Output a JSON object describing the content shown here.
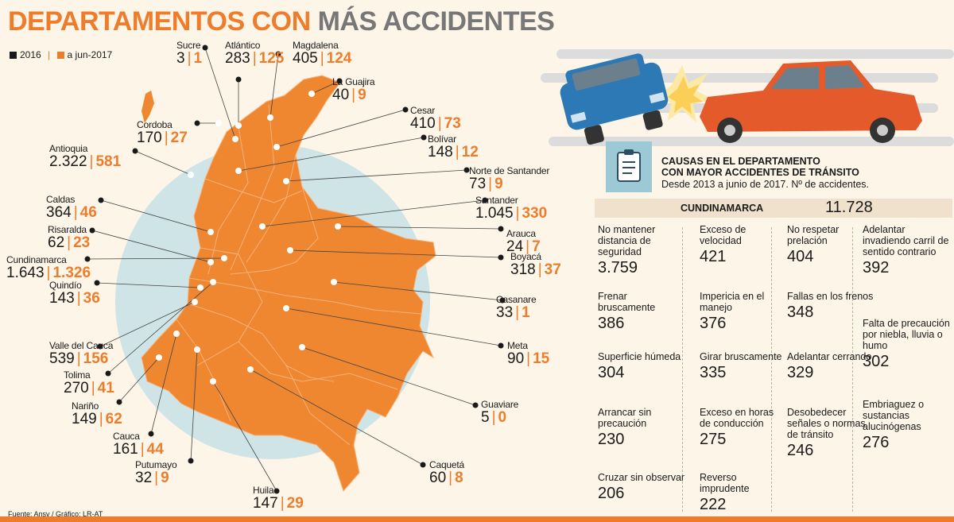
{
  "title": {
    "part1": "DEPARTAMENTOS CON",
    "part2": "MÁS ACCIDENTES"
  },
  "legend": {
    "y2016": "2016",
    "y2017": "a jun-2017",
    "sep": "|"
  },
  "colors": {
    "accent": "#ee7d2b",
    "map_fill": "#ef8630",
    "circle": "#cfe4e6",
    "dark": "#1a1a1a",
    "car_blue": "#2d79b6",
    "car_red": "#e55a2b"
  },
  "departments": [
    {
      "name": "Sucre",
      "v2016": "3",
      "v2017": "1"
    },
    {
      "name": "Atlántico",
      "v2016": "283",
      "v2017": "125"
    },
    {
      "name": "Magdalena",
      "v2016": "405",
      "v2017": "124"
    },
    {
      "name": "La Guajira",
      "v2016": "40",
      "v2017": "9"
    },
    {
      "name": "Cesar",
      "v2016": "410",
      "v2017": "73"
    },
    {
      "name": "Bolívar",
      "v2016": "148",
      "v2017": "12"
    },
    {
      "name": "Norte de Santander",
      "v2016": "73",
      "v2017": "9"
    },
    {
      "name": "Santander",
      "v2016": "1.045",
      "v2017": "330"
    },
    {
      "name": "Arauca",
      "v2016": "24",
      "v2017": "7"
    },
    {
      "name": "Boyacá",
      "v2016": "318",
      "v2017": "37"
    },
    {
      "name": "Casanare",
      "v2016": "33",
      "v2017": "1"
    },
    {
      "name": "Meta",
      "v2016": "90",
      "v2017": "15"
    },
    {
      "name": "Guaviare",
      "v2016": "5",
      "v2017": "0"
    },
    {
      "name": "Caquetá",
      "v2016": "60",
      "v2017": "8"
    },
    {
      "name": "Huila",
      "v2016": "147",
      "v2017": "29"
    },
    {
      "name": "Putumayo",
      "v2016": "32",
      "v2017": "9"
    },
    {
      "name": "Cauca",
      "v2016": "161",
      "v2017": "44"
    },
    {
      "name": "Nariño",
      "v2016": "149",
      "v2017": "62"
    },
    {
      "name": "Tolima",
      "v2016": "270",
      "v2017": "41"
    },
    {
      "name": "Valle del Cauca",
      "v2016": "539",
      "v2017": "156"
    },
    {
      "name": "Quindío",
      "v2016": "143",
      "v2017": "36"
    },
    {
      "name": "Cundinamarca",
      "v2016": "1.643",
      "v2017": "1.326"
    },
    {
      "name": "Risaralda",
      "v2016": "62",
      "v2017": "23"
    },
    {
      "name": "Caldas",
      "v2016": "364",
      "v2017": "46"
    },
    {
      "name": "Antioquia",
      "v2016": "2.322",
      "v2017": "581"
    },
    {
      "name": "Cordoba",
      "v2016": "170",
      "v2017": "27"
    }
  ],
  "causes_panel": {
    "title_line1": "CAUSAS EN EL DEPARTAMENTO",
    "title_line2": "CON MAYOR ACCIDENTES DE TRÁNSITO",
    "subtitle": "Desde 2013 a junio de 2017. Nº de accidentes.",
    "department": "CUNDINAMARCA",
    "total": "11.728",
    "icon": "clipboard-icon",
    "illustration": "car-collision-illustration",
    "causes": [
      {
        "label": "No mantener distancia de seguridad",
        "value": "3.759"
      },
      {
        "label": "Frenar bruscamente",
        "value": "386"
      },
      {
        "label": "Superficie húmeda",
        "value": "304"
      },
      {
        "label": "Arrancar sin precaución",
        "value": "230"
      },
      {
        "label": "Cruzar sin observar",
        "value": "206"
      },
      {
        "label": "Exceso de velocidad",
        "value": "421"
      },
      {
        "label": "Impericia en el manejo",
        "value": "376"
      },
      {
        "label": "Girar bruscamente",
        "value": "335"
      },
      {
        "label": "Exceso en horas de conducción",
        "value": "275"
      },
      {
        "label": "Reverso imprudente",
        "value": "222"
      },
      {
        "label": "No respetar prelación",
        "value": "404"
      },
      {
        "label": "Fallas en los frenos",
        "value": "348"
      },
      {
        "label": "Adelantar cerrando",
        "value": "329"
      },
      {
        "label": "Desobedecer señales o normas de tránsito",
        "value": "246"
      },
      {
        "label": "Adelantar invadiendo carril de sentido contrario",
        "value": "392"
      },
      {
        "label": "Falta de precaución por niebla, lluvia o humo",
        "value": "302"
      },
      {
        "label": "Embriaguez o sustancias alucinógenas",
        "value": "276"
      }
    ]
  },
  "source": "Fuente: Ansv / Gráfico: LR-AT"
}
